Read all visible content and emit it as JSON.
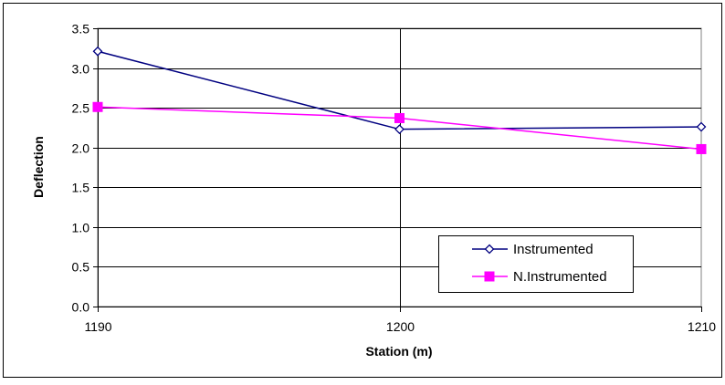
{
  "chart_data": {
    "type": "line",
    "xlabel": "Station (m)",
    "ylabel": "Deflection",
    "x": [
      1190,
      1200,
      1210
    ],
    "xlim": [
      1190,
      1210
    ],
    "ylim": [
      0.0,
      3.5
    ],
    "x_ticks": [
      "1190",
      "1200",
      "1210"
    ],
    "y_ticks": [
      "0.0",
      "0.5",
      "1.0",
      "1.5",
      "2.0",
      "2.5",
      "3.0",
      "3.5"
    ],
    "grid": true,
    "legend_position": "bottom-right",
    "series": [
      {
        "name": "Instrumented",
        "values": [
          3.21,
          2.23,
          2.26
        ],
        "color": "#000080",
        "marker": "diamond-open"
      },
      {
        "name": "N.Instrumented",
        "values": [
          2.51,
          2.37,
          1.98
        ],
        "color": "#ff00ff",
        "marker": "square-filled"
      }
    ]
  }
}
